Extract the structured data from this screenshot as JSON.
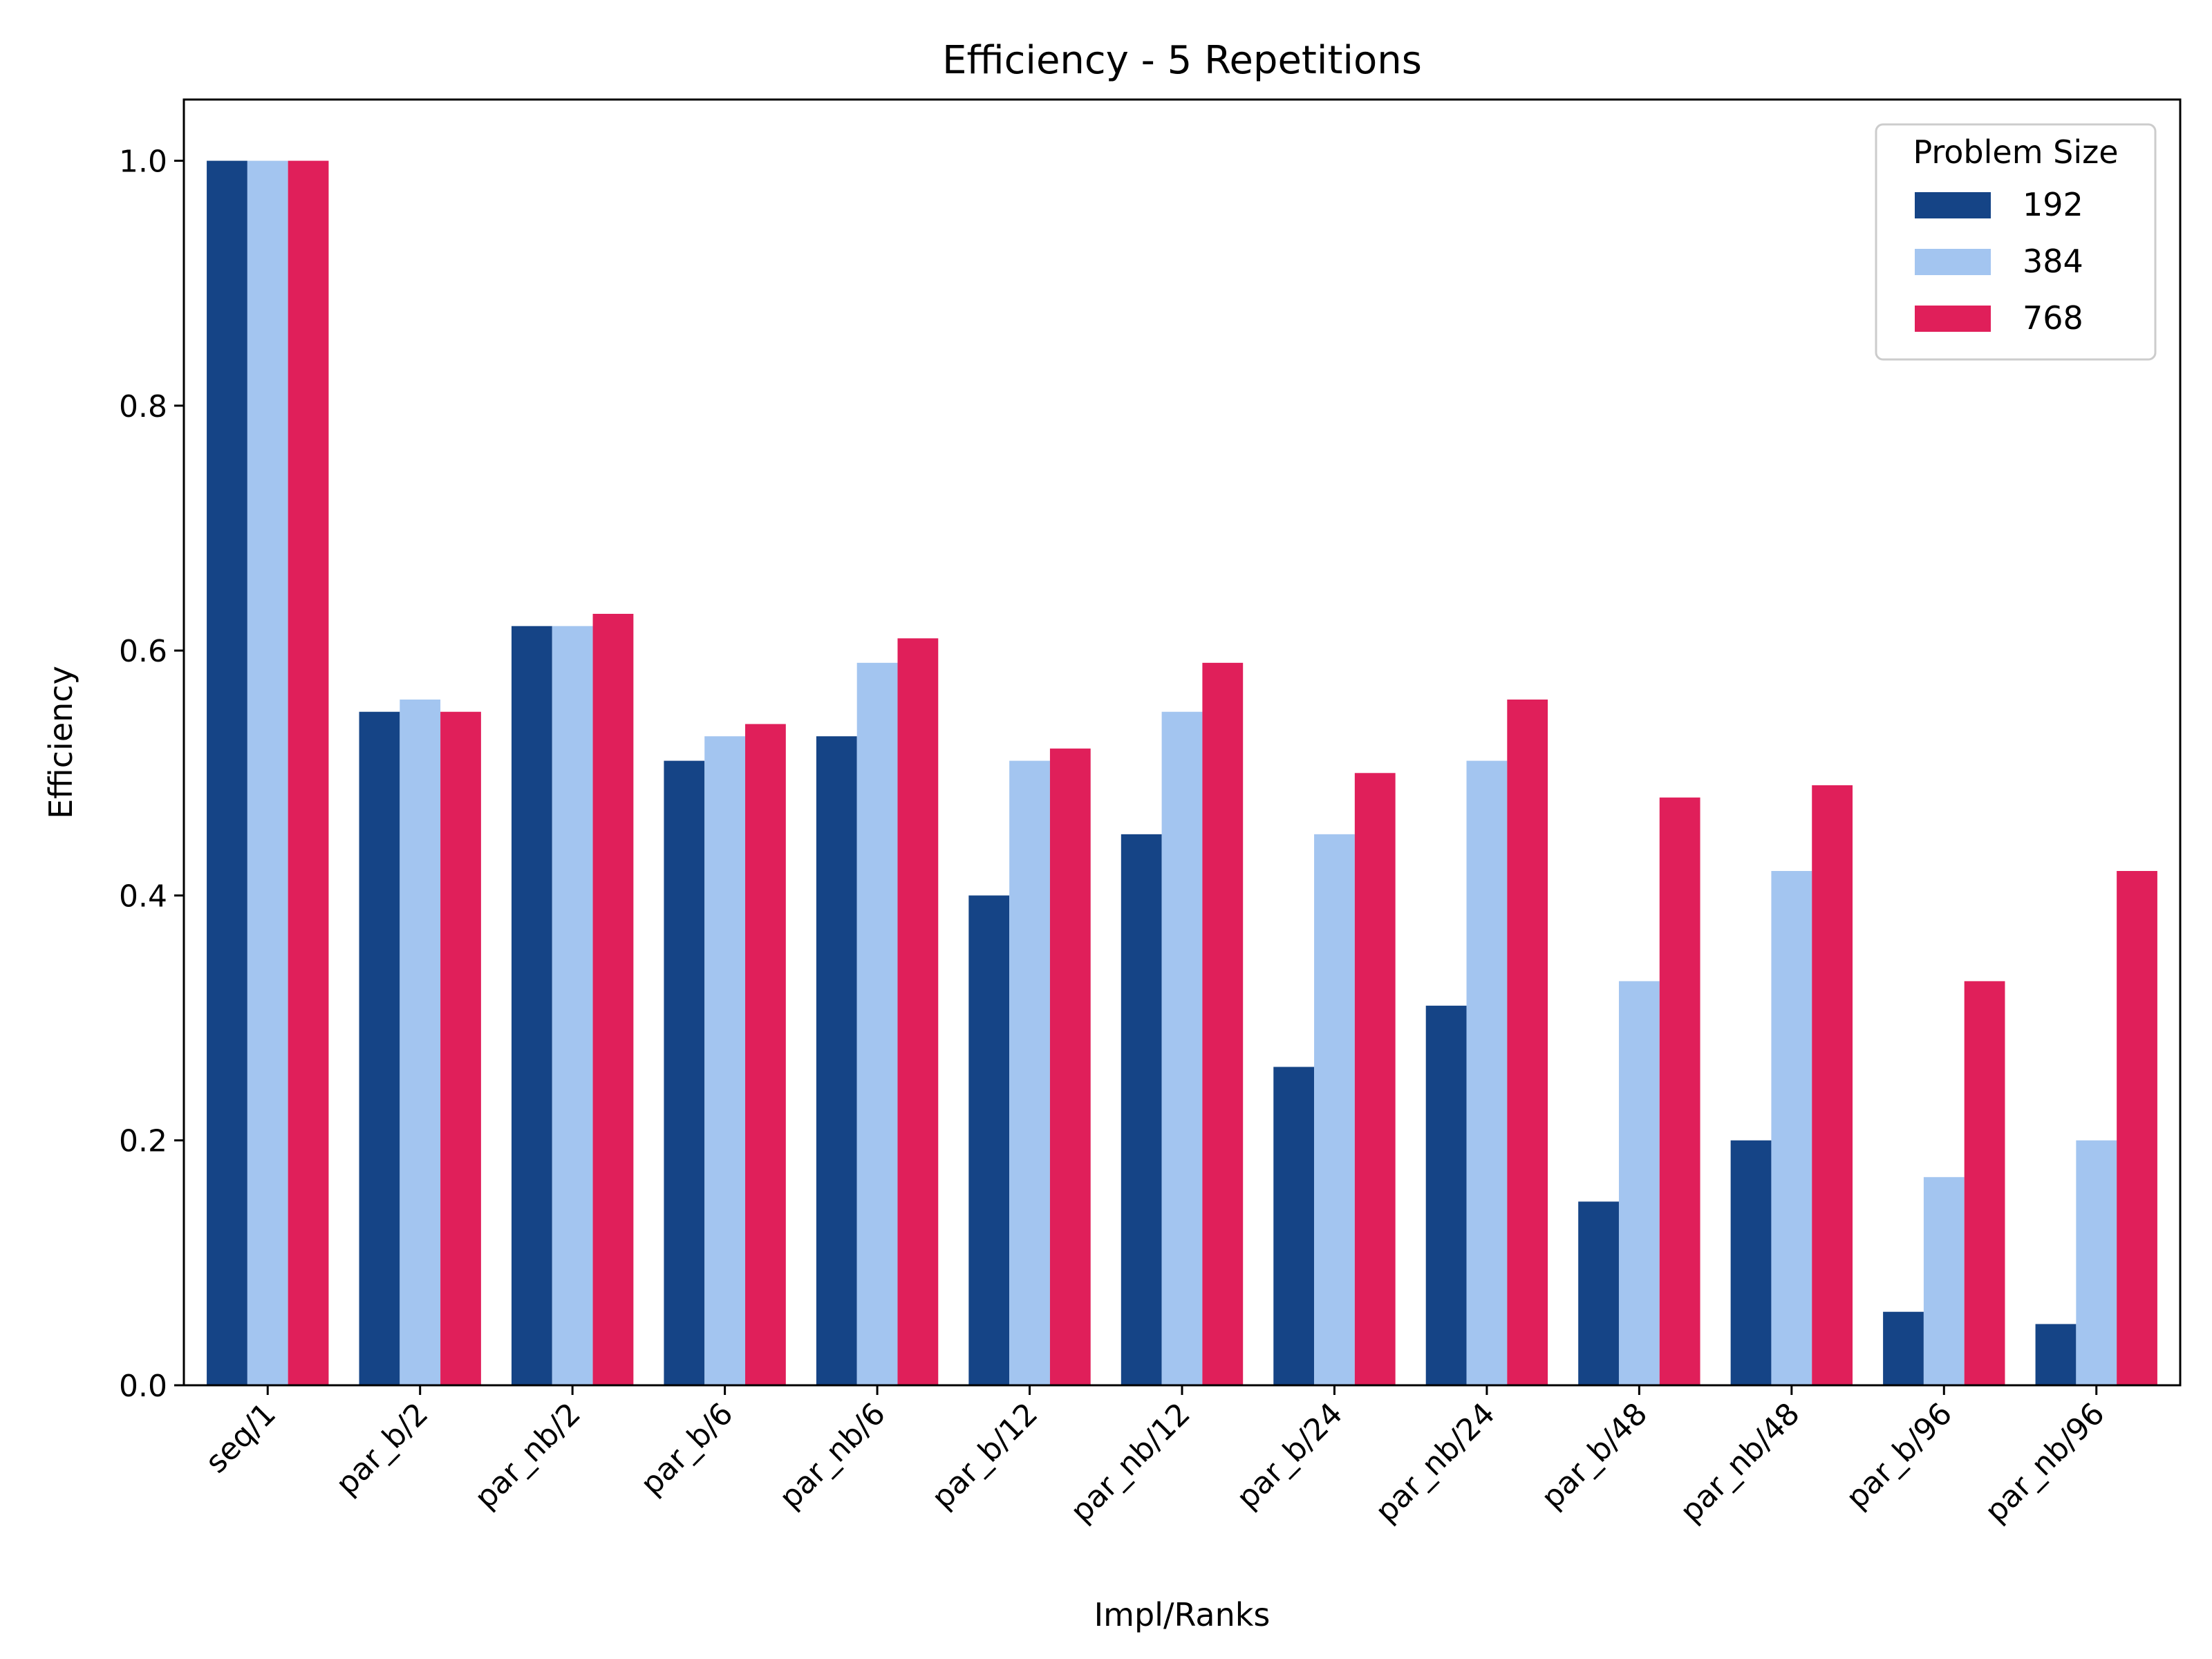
{
  "chart_data": {
    "type": "bar",
    "title": "Efficiency - 5 Repetitions",
    "xlabel": "Impl/Ranks",
    "ylabel": "Efficiency",
    "ylim": [
      0,
      1.05
    ],
    "yticks": [
      0.0,
      0.2,
      0.4,
      0.6,
      0.8,
      1.0
    ],
    "ytick_labels": [
      "0.0",
      "0.2",
      "0.4",
      "0.6",
      "0.8",
      "1.0"
    ],
    "categories": [
      "seq/1",
      "par_b/2",
      "par_nb/2",
      "par_b/6",
      "par_nb/6",
      "par_b/12",
      "par_nb/12",
      "par_b/24",
      "par_nb/24",
      "par_b/48",
      "par_nb/48",
      "par_b/96",
      "par_nb/96"
    ],
    "legend": {
      "title": "Problem Size",
      "placement": "top-right"
    },
    "grid": false,
    "series": [
      {
        "name": "192",
        "color": "#154486",
        "values": [
          1.0,
          0.55,
          0.62,
          0.51,
          0.53,
          0.4,
          0.45,
          0.26,
          0.31,
          0.15,
          0.2,
          0.06,
          0.05
        ]
      },
      {
        "name": "384",
        "color": "#a3c5f0",
        "values": [
          1.0,
          0.56,
          0.62,
          0.53,
          0.59,
          0.51,
          0.55,
          0.45,
          0.51,
          0.33,
          0.42,
          0.17,
          0.2
        ]
      },
      {
        "name": "768",
        "color": "#e01f5a",
        "values": [
          1.0,
          0.55,
          0.63,
          0.54,
          0.61,
          0.52,
          0.59,
          0.5,
          0.56,
          0.48,
          0.49,
          0.33,
          0.42
        ]
      }
    ]
  }
}
